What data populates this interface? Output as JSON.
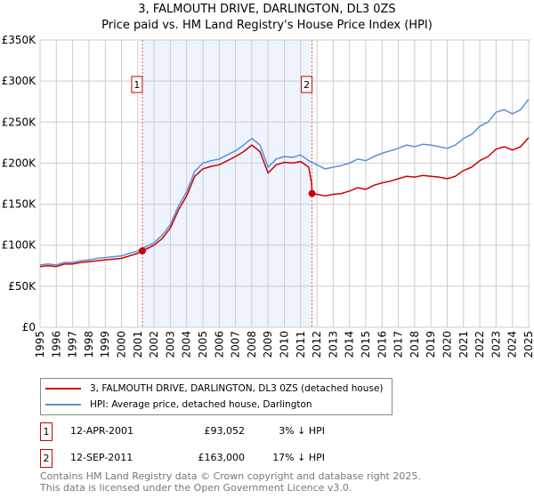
{
  "header": {
    "title": "3, FALMOUTH DRIVE, DARLINGTON, DL3 0ZS",
    "subtitle": "Price paid vs. HM Land Registry's House Price Index (HPI)"
  },
  "chart_data": {
    "type": "line",
    "title": "3, FALMOUTH DRIVE, DARLINGTON, DL3 0ZS",
    "subtitle": "Price paid vs. HM Land Registry's House Price Index (HPI)",
    "xlim": [
      1995,
      2025.1
    ],
    "ylim": [
      0,
      350000
    ],
    "grid": true,
    "x_ticks": [
      "1995",
      "1996",
      "1997",
      "1998",
      "1999",
      "2000",
      "2001",
      "2002",
      "2003",
      "2004",
      "2005",
      "2006",
      "2007",
      "2008",
      "2009",
      "2010",
      "2011",
      "2012",
      "2013",
      "2014",
      "2015",
      "2016",
      "2017",
      "2018",
      "2019",
      "2020",
      "2021",
      "2022",
      "2023",
      "2024",
      "2025"
    ],
    "y_ticks": [
      {
        "v": 0,
        "label": "£0"
      },
      {
        "v": 50000,
        "label": "£50K"
      },
      {
        "v": 100000,
        "label": "£100K"
      },
      {
        "v": 150000,
        "label": "£150K"
      },
      {
        "v": 200000,
        "label": "£200K"
      },
      {
        "v": 250000,
        "label": "£250K"
      },
      {
        "v": 300000,
        "label": "£300K"
      },
      {
        "v": 350000,
        "label": "£350K"
      }
    ],
    "shaded_range": [
      2001.28,
      2011.7
    ],
    "series": [
      {
        "name": "3, FALMOUTH DRIVE, DARLINGTON, DL3 0ZS (detached house)",
        "color": "#cc0000",
        "x": [
          1995,
          1995.5,
          1996,
          1996.5,
          1997,
          1997.5,
          1998,
          1998.5,
          1999,
          1999.5,
          2000,
          2000.5,
          2001,
          2001.28,
          2001.5,
          2002,
          2002.5,
          2003,
          2003.5,
          2004,
          2004.5,
          2005,
          2005.5,
          2006,
          2006.5,
          2007,
          2007.5,
          2008,
          2008.5,
          2009,
          2009.5,
          2010,
          2010.5,
          2011,
          2011.5,
          2011.68,
          2011.7,
          2012,
          2012.5,
          2013,
          2013.5,
          2014,
          2014.5,
          2015,
          2015.5,
          2016,
          2016.5,
          2017,
          2017.5,
          2018,
          2018.5,
          2019,
          2019.5,
          2020,
          2020.5,
          2021,
          2021.5,
          2022,
          2022.5,
          2023,
          2023.5,
          2024,
          2024.5,
          2025
        ],
        "y": [
          74,
          75,
          74,
          77,
          77,
          79,
          80,
          81,
          82,
          83,
          84,
          87,
          90,
          93.052,
          95,
          100,
          108,
          121,
          143,
          160,
          184,
          193,
          196,
          198,
          203,
          208,
          214,
          222,
          214,
          188,
          198,
          201,
          200,
          202,
          195,
          175,
          163,
          162,
          160,
          162,
          163,
          166,
          170,
          168,
          173,
          176,
          178,
          181,
          184,
          183,
          185,
          184,
          183,
          181,
          184,
          191,
          195,
          203,
          208,
          217,
          220,
          216,
          220,
          231
        ],
        "y_unit": "thousand GBP"
      },
      {
        "name": "HPI: Average price, detached house, Darlington",
        "color": "#5b8fd6",
        "x": [
          1995,
          1995.5,
          1996,
          1996.5,
          1997,
          1997.5,
          1998,
          1998.5,
          1999,
          1999.5,
          2000,
          2000.5,
          2001,
          2001.5,
          2002,
          2002.5,
          2003,
          2003.5,
          2004,
          2004.5,
          2005,
          2005.5,
          2006,
          2006.5,
          2007,
          2007.5,
          2008,
          2008.5,
          2009,
          2009.5,
          2010,
          2010.5,
          2011,
          2011.5,
          2012,
          2012.5,
          2013,
          2013.5,
          2014,
          2014.5,
          2015,
          2015.5,
          2016,
          2016.5,
          2017,
          2017.5,
          2018,
          2018.5,
          2019,
          2019.5,
          2020,
          2020.5,
          2021,
          2021.5,
          2022,
          2022.5,
          2023,
          2023.5,
          2024,
          2024.5,
          2025
        ],
        "y": [
          76,
          77,
          76,
          79,
          79,
          81,
          82,
          84,
          85,
          86,
          87,
          90,
          93,
          98,
          103,
          112,
          125,
          148,
          165,
          190,
          200,
          203,
          205,
          210,
          215,
          222,
          230,
          222,
          195,
          205,
          208,
          207,
          210,
          203,
          198,
          193,
          195,
          197,
          200,
          205,
          203,
          208,
          212,
          215,
          218,
          222,
          220,
          223,
          222,
          220,
          218,
          222,
          230,
          235,
          245,
          250,
          262,
          265,
          260,
          265,
          278
        ],
        "y_unit": "thousand GBP"
      }
    ],
    "annotations": [
      {
        "label": "1",
        "x": 2001.28,
        "y": 93.052
      },
      {
        "label": "2",
        "x": 2011.7,
        "y": 163
      }
    ]
  },
  "legend": {
    "items": [
      {
        "label": "3, FALMOUTH DRIVE, DARLINGTON, DL3 0ZS (detached house)",
        "color": "#cc0000"
      },
      {
        "label": "HPI: Average price, detached house, Darlington",
        "color": "#5b8fd6"
      }
    ]
  },
  "sales": [
    {
      "num": "1",
      "date": "12-APR-2001",
      "price": "£93,052",
      "hpi": "3% ↓ HPI"
    },
    {
      "num": "2",
      "date": "12-SEP-2011",
      "price": "£163,000",
      "hpi": "17% ↓ HPI"
    }
  ],
  "footer": {
    "line1": "Contains HM Land Registry data © Crown copyright and database right 2025.",
    "line2": "This data is licensed under the Open Government Licence v3.0."
  }
}
